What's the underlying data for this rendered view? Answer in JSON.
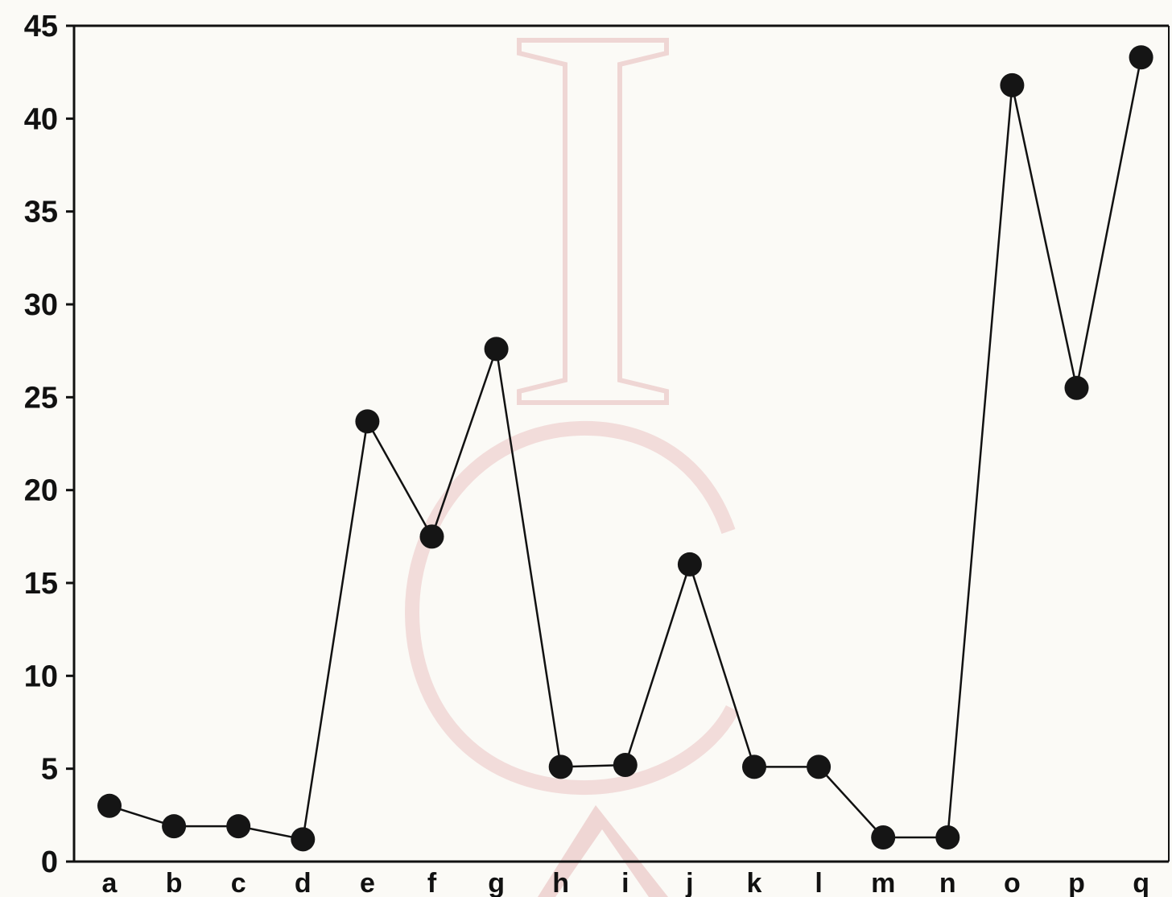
{
  "colors": {
    "background": "#fbfaf6",
    "line": "#111111",
    "marker": "#151515",
    "watermark": "#e6b8b8"
  },
  "chart_data": {
    "type": "line",
    "title": "",
    "xlabel": "",
    "ylabel": "",
    "ylim": [
      0,
      45
    ],
    "yticks": [
      0,
      5,
      10,
      15,
      20,
      25,
      30,
      35,
      40,
      45
    ],
    "grid": false,
    "legend": "none",
    "markers": "filled-circle",
    "categories": [
      "a",
      "b",
      "c",
      "d",
      "e",
      "f",
      "g",
      "h",
      "i",
      "j",
      "k",
      "l",
      "m",
      "n",
      "o",
      "p",
      "q"
    ],
    "values": [
      3.0,
      1.9,
      1.9,
      1.2,
      23.7,
      17.5,
      27.6,
      5.1,
      5.2,
      16.0,
      5.1,
      5.1,
      1.3,
      1.3,
      41.8,
      25.5,
      43.3
    ]
  },
  "watermark": {
    "text": "ICA"
  }
}
